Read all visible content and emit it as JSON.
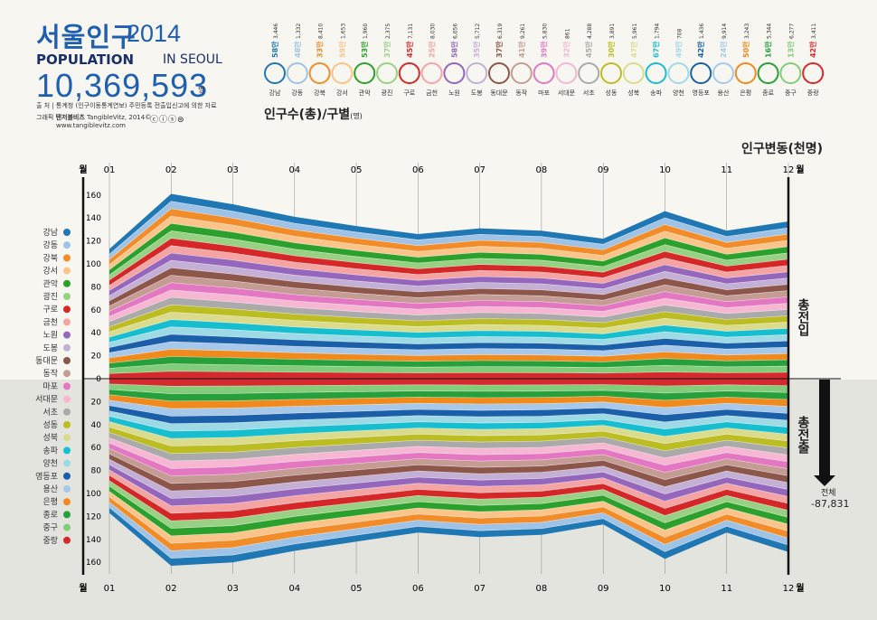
{
  "header": {
    "title": "서울인구",
    "year": "2014",
    "subtitle_bold": "POPULATION",
    "subtitle_rest": "IN SEOUL",
    "total": "10,369,593",
    "total_unit": "명",
    "source_label": "출 처",
    "source_text": "| 통계청 (인구이동통계연보) 주민등록 전출입신고에 의한 자료",
    "credit_label": "그래픽",
    "credit_bold": "탠저블비츠",
    "credit_text": "TangibleVitz, 2014©",
    "website": "www.tangiblevitz.com",
    "license_icons": "ⓒⓘⓢ⊜"
  },
  "legend": {
    "title": "인구수(총)/구별",
    "unit": "(명)"
  },
  "right_title": "인구변동(천명)",
  "side_in": "총전입",
  "side_out": "총전출",
  "total_change_label": "전체",
  "total_change_value": "-87,831",
  "month_suffix": "월",
  "colors": {
    "title_blue": "#1e5fb0",
    "axis": "#111111"
  },
  "chart_data": {
    "type": "area",
    "title": "인구변동(천명)",
    "xlabel": "월",
    "ylabel": "",
    "x": [
      "01",
      "02",
      "03",
      "04",
      "05",
      "06",
      "07",
      "08",
      "09",
      "10",
      "11",
      "12"
    ],
    "ylim_in": [
      0,
      160
    ],
    "ylim_out": [
      0,
      160
    ],
    "y_ticks": [
      0,
      20,
      40,
      60,
      80,
      100,
      120,
      140,
      160
    ],
    "total_in": [
      113,
      161,
      152,
      141,
      133,
      126,
      131,
      129,
      122,
      146,
      129,
      137
    ],
    "total_out": [
      117,
      163,
      160,
      150,
      142,
      134,
      138,
      136,
      127,
      157,
      134,
      151
    ],
    "districts": [
      {
        "name": "강남",
        "color": "#1f77b4",
        "population": "3,446",
        "man": "58만"
      },
      {
        "name": "강동",
        "color": "#9ec3e6",
        "population": "1,332",
        "man": "48만"
      },
      {
        "name": "강북",
        "color": "#f28c28",
        "population": "8,410",
        "man": "33만"
      },
      {
        "name": "강서",
        "color": "#fbc48a",
        "population": "1,653",
        "man": "59만"
      },
      {
        "name": "관악",
        "color": "#2ca02c",
        "population": "1,960",
        "man": "53만"
      },
      {
        "name": "광진",
        "color": "#98d184",
        "population": "2,375",
        "man": "37만"
      },
      {
        "name": "구로",
        "color": "#d62728",
        "population": "7,131",
        "man": "45만"
      },
      {
        "name": "금천",
        "color": "#f4a5a3",
        "population": "8,030",
        "man": "25만"
      },
      {
        "name": "노원",
        "color": "#9467bd",
        "population": "6,056",
        "man": "58만"
      },
      {
        "name": "도봉",
        "color": "#c5b0d5",
        "population": "5,712",
        "man": "35만"
      },
      {
        "name": "동대문",
        "color": "#8c564b",
        "population": "6,319",
        "man": "37만"
      },
      {
        "name": "동작",
        "color": "#c49c94",
        "population": "9,261",
        "man": "41만"
      },
      {
        "name": "마포",
        "color": "#e377c2",
        "population": "5,830",
        "man": "39만"
      },
      {
        "name": "서대문",
        "color": "#f7b6d2",
        "population": "861",
        "man": "32만"
      },
      {
        "name": "서초",
        "color": "#aaaaaa",
        "population": "4,288",
        "man": "45만"
      },
      {
        "name": "성동",
        "color": "#bcbd22",
        "population": "3,891",
        "man": "30만"
      },
      {
        "name": "성북",
        "color": "#dbdb8d",
        "population": "5,961",
        "man": "47만"
      },
      {
        "name": "송파",
        "color": "#17becf",
        "population": "1,794",
        "man": "67만"
      },
      {
        "name": "양천",
        "color": "#9edae5",
        "population": "708",
        "man": "49만"
      },
      {
        "name": "영등포",
        "color": "#1a5fa8",
        "population": "1,436",
        "man": "42만"
      },
      {
        "name": "용산",
        "color": "#a6c8ea",
        "population": "9,914",
        "man": "24만"
      },
      {
        "name": "은평",
        "color": "#f08a1c",
        "population": "3,243",
        "man": "50만"
      },
      {
        "name": "종로",
        "color": "#27a03c",
        "population": "5,344",
        "man": "16만"
      },
      {
        "name": "중구",
        "color": "#82cc7a",
        "population": "6,277",
        "man": "13만"
      },
      {
        "name": "중랑",
        "color": "#d42a2e",
        "population": "3,411",
        "man": "42만"
      }
    ]
  }
}
